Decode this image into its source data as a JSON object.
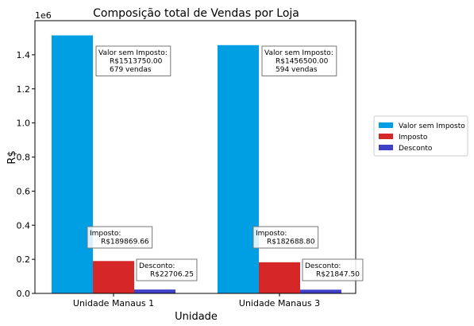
{
  "chart_data": {
    "type": "bar",
    "title": "Composição total de Vendas por Loja",
    "xlabel": "Unidade",
    "ylabel": "R$",
    "y_offset_label": "1e6",
    "ylim": [
      0,
      1600000
    ],
    "yticks": [
      "0.0",
      "0.2",
      "0.4",
      "0.6",
      "0.8",
      "1.0",
      "1.2",
      "1.4"
    ],
    "ytick_values": [
      0,
      200000,
      400000,
      600000,
      800000,
      1000000,
      1200000,
      1400000
    ],
    "categories": [
      "Unidade Manaus 1",
      "Unidade Manaus 3"
    ],
    "grid": false,
    "legend_position": "right",
    "series": [
      {
        "name": "Valor sem Imposto",
        "color": "#009fe3",
        "values": [
          1513750.0,
          1456500.0
        ],
        "labels": [
          [
            "Valor sem Imposto:",
            "R$1513750.00",
            "679 vendas"
          ],
          [
            "Valor sem Imposto:",
            "R$1456500.00",
            "594 vendas"
          ]
        ]
      },
      {
        "name": "Imposto",
        "color": "#d62728",
        "values": [
          189869.66,
          182688.8
        ],
        "labels": [
          [
            "Imposto:",
            "R$189869.66"
          ],
          [
            "Imposto:",
            "R$182688.80"
          ]
        ]
      },
      {
        "name": "Desconto",
        "color": "#4040c8",
        "values": [
          22706.25,
          21847.5
        ],
        "labels": [
          [
            "Desconto:",
            "R$22706.25"
          ],
          [
            "Desconto:",
            "R$21847.50"
          ]
        ]
      }
    ]
  }
}
